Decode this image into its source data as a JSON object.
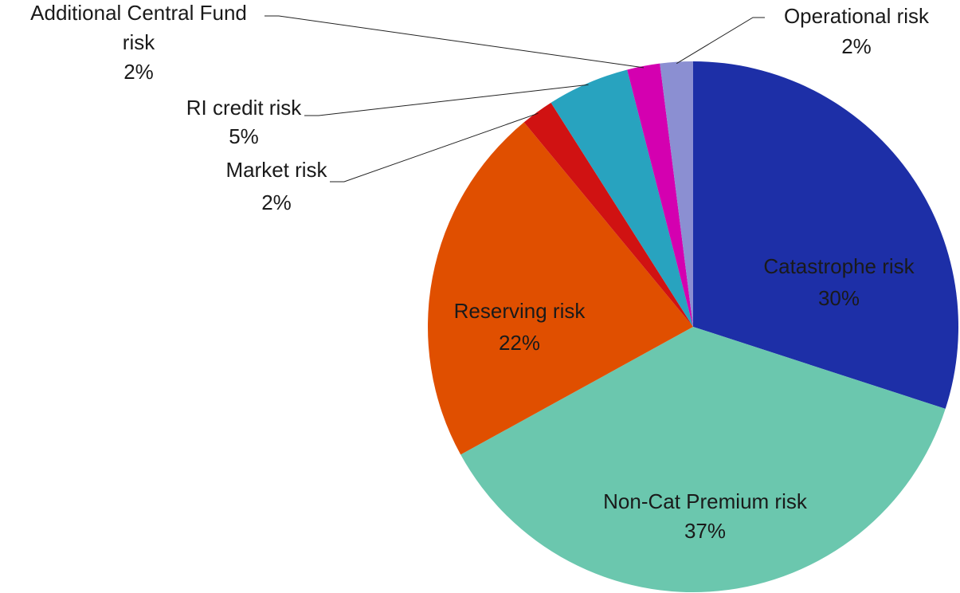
{
  "chart_data": {
    "type": "pie",
    "categories": [
      "Catastrophe risk",
      "Non-Cat Premium risk",
      "Reserving risk",
      "Market risk",
      "RI credit risk",
      "Additional Central Fund risk",
      "Operational risk"
    ],
    "values": [
      30,
      37,
      22,
      2,
      5,
      2,
      2
    ],
    "value_labels": [
      "30%",
      "37%",
      "22%",
      "2%",
      "5%",
      "2%",
      "2%"
    ],
    "colors": [
      "#1d2fa7",
      "#6bc7ae",
      "#e04f00",
      "#d01212",
      "#28a3bf",
      "#d400b0",
      "#8b8fd2"
    ]
  }
}
